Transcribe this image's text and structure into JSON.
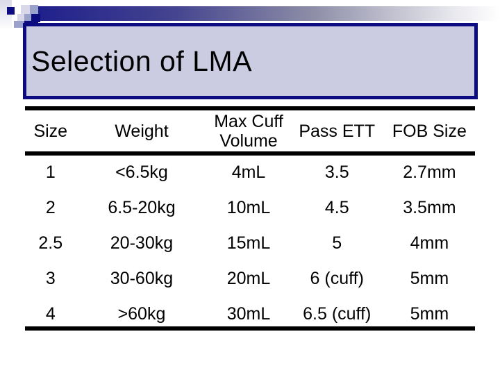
{
  "slide_title": "Selection of LMA",
  "table": {
    "columns": [
      "Size",
      "Weight",
      "Max Cuff\nVolume",
      "Pass ETT",
      "FOB Size"
    ],
    "rows": [
      [
        "1",
        "<6.5kg",
        "4mL",
        "3.5",
        "2.7mm"
      ],
      [
        "2",
        "6.5-20kg",
        "10mL",
        "4.5",
        "3.5mm"
      ],
      [
        "2.5",
        "20-30kg",
        "15mL",
        "5",
        "4mm"
      ],
      [
        "3",
        "30-60kg",
        "20mL",
        "6 (cuff)",
        "5mm"
      ],
      [
        "4",
        ">60kg",
        "30mL",
        "6.5 (cuff)",
        "5mm"
      ]
    ]
  },
  "colors": {
    "navy": "#0c0c80",
    "title-fill": "#cbcbe2",
    "bar-start": "#1f1f8c",
    "checker-light": "#d8d8e8",
    "checker-medium": "#9aa2cc",
    "rule-black": "#000000",
    "text": "#000000"
  }
}
